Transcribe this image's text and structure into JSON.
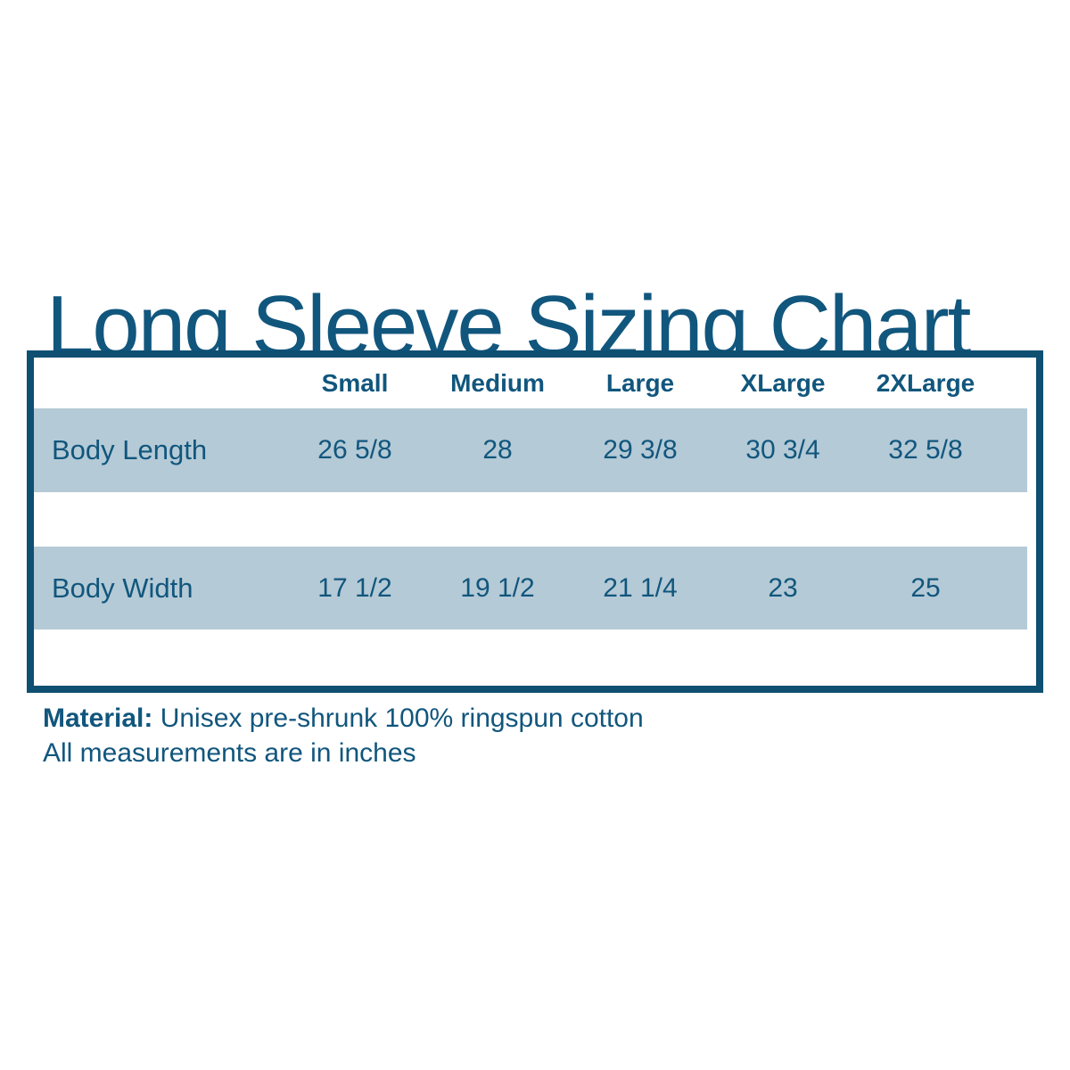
{
  "title": "Long Sleeve Sizing Chart",
  "colors": {
    "text": "#11567D",
    "table_border": "#0E4F72",
    "row_shade": "#B4CAD6",
    "background": "#FFFFFF"
  },
  "chart_data": {
    "type": "table",
    "title": "Long Sleeve Sizing Chart",
    "columns": [
      "",
      "Small",
      "Medium",
      "Large",
      "XLarge",
      "2XLarge"
    ],
    "rows": [
      {
        "label": "Body Length",
        "values": [
          "26 5/8",
          "28",
          "29 3/8",
          "30 3/4",
          "32 5/8"
        ]
      },
      {
        "label": "Body Width",
        "values": [
          "17 1/2",
          "19 1/2",
          "21 1/4",
          "23",
          "25"
        ]
      }
    ],
    "units": "inches"
  },
  "footer": {
    "material_label": "Material:",
    "material_value": " Unisex pre-shrunk 100% ringspun cotton",
    "note": "All measurements are in inches"
  }
}
